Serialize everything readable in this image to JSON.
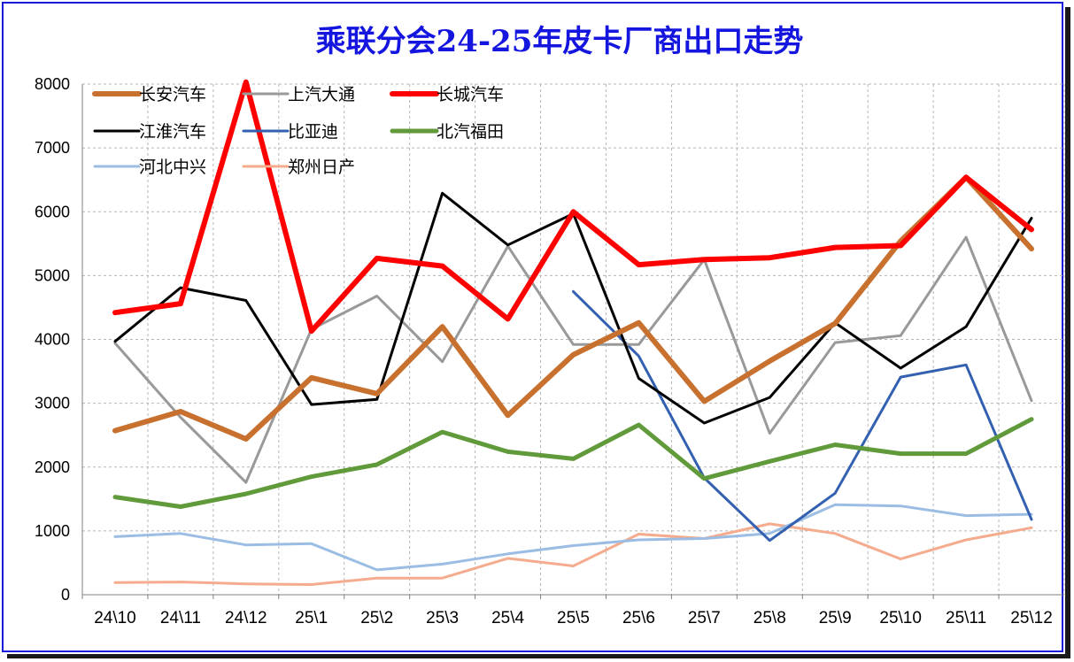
{
  "chart_data": {
    "type": "line",
    "title": "乘联分会24-25年皮卡厂商出口走势",
    "categories": [
      "24\\10",
      "24\\11",
      "24\\12",
      "25\\1",
      "25\\2",
      "25\\3",
      "25\\4",
      "25\\5",
      "25\\6",
      "25\\7",
      "25\\8",
      "25\\9",
      "25\\10",
      "25\\11",
      "25\\12"
    ],
    "ylim": [
      0,
      8000
    ],
    "yticks": [
      0,
      1000,
      2000,
      3000,
      4000,
      5000,
      6000,
      7000,
      8000
    ],
    "grid": true,
    "legend_position": "top-left",
    "series": [
      {
        "name": "长安汽车",
        "color": "#c8702e",
        "width": 6,
        "values": [
          2570,
          2870,
          2440,
          3400,
          3150,
          4200,
          2810,
          3760,
          4260,
          3030,
          3660,
          4250,
          5540,
          6540,
          5420
        ]
      },
      {
        "name": "上汽大通",
        "color": "#999999",
        "width": 3,
        "values": [
          3940,
          2780,
          1760,
          4160,
          4680,
          3650,
          5460,
          3920,
          3920,
          5250,
          2530,
          3950,
          4060,
          5600,
          3040
        ]
      },
      {
        "name": "长城汽车",
        "color": "#ff0000",
        "width": 6,
        "values": [
          4420,
          4560,
          8030,
          4130,
          5270,
          5150,
          4320,
          6000,
          5170,
          5250,
          5280,
          5440,
          5470,
          6540,
          5720
        ]
      },
      {
        "name": "江淮汽车",
        "color": "#000000",
        "width": 3,
        "values": [
          3970,
          4810,
          4610,
          2980,
          3060,
          6290,
          5480,
          5970,
          3390,
          2690,
          3090,
          4260,
          3550,
          4200,
          5900
        ]
      },
      {
        "name": "比亚迪",
        "color": "#3360b0",
        "width": 3,
        "values": [
          null,
          null,
          null,
          null,
          null,
          null,
          null,
          4750,
          3740,
          1830,
          850,
          1590,
          3410,
          3600,
          1180
        ]
      },
      {
        "name": "北汽福田",
        "color": "#609a3a",
        "width": 5,
        "values": [
          1530,
          1380,
          1580,
          1850,
          2040,
          2550,
          2240,
          2130,
          2660,
          1820,
          2090,
          2350,
          2210,
          2210,
          2750
        ]
      },
      {
        "name": "河北中兴",
        "color": "#9bbde4",
        "width": 3,
        "values": [
          910,
          960,
          780,
          800,
          390,
          480,
          640,
          770,
          860,
          880,
          960,
          1410,
          1390,
          1240,
          1260
        ]
      },
      {
        "name": "郑州日产",
        "color": "#f5ab8e",
        "width": 3,
        "values": [
          190,
          200,
          170,
          160,
          260,
          260,
          570,
          450,
          950,
          880,
          1110,
          960,
          560,
          860,
          1050
        ]
      }
    ]
  }
}
